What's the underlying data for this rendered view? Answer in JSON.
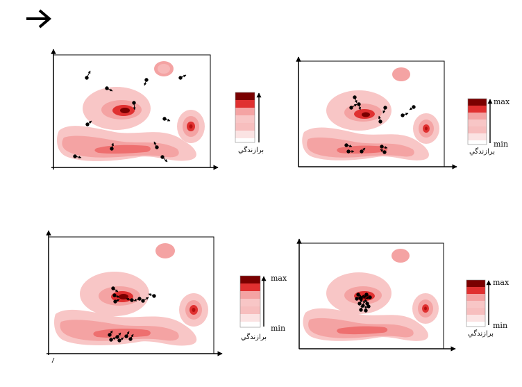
{
  "header": {
    "arrow_icon": "right-arrow-icon"
  },
  "legend": {
    "max_label": "max",
    "min_label": "min",
    "fitness_label": "برازندگي"
  },
  "colors": {
    "level_1": "#fbe3e3",
    "level_2": "#f8c6c6",
    "level_3": "#f4a3a3",
    "level_4": "#ee6f6f",
    "level_5": "#e03030",
    "level_6": "#b50f0f",
    "level_7": "#7a0000",
    "particle": "#000000",
    "axis": "#000000"
  },
  "panels": [
    {
      "id": "top-left",
      "show_max_min": false,
      "stage": "initial scattered particles"
    },
    {
      "id": "top-right",
      "show_max_min": true,
      "stage": "particles moving toward peaks"
    },
    {
      "id": "bottom-left",
      "show_max_min": true,
      "stage": "particles gathering"
    },
    {
      "id": "bottom-right",
      "show_max_min": true,
      "stage": "particles converged at global max"
    }
  ]
}
